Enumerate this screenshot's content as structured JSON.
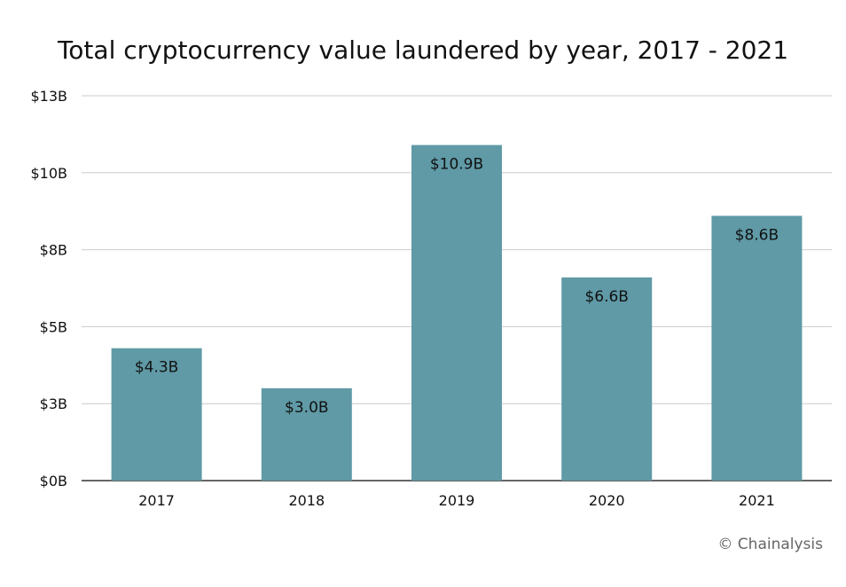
{
  "chart_data": {
    "type": "bar",
    "title": "Total cryptocurrency value laundered by year, 2017 - 2021",
    "xlabel": "",
    "ylabel": "",
    "categories": [
      "2017",
      "2018",
      "2019",
      "2020",
      "2021"
    ],
    "values": [
      4.3,
      3.0,
      10.9,
      6.6,
      8.6
    ],
    "data_labels": [
      "$4.3B",
      "$3.0B",
      "$10.9B",
      "$6.6B",
      "$8.6B"
    ],
    "ylim": [
      0,
      12.5
    ],
    "y_ticks": [
      0,
      2.5,
      5,
      7.5,
      10,
      12.5
    ],
    "y_tick_labels": [
      "$0B",
      "$3B",
      "$5B",
      "$8B",
      "$10B",
      "$13B"
    ],
    "grid": true,
    "bar_color": "#5f9aa6"
  },
  "source": "© Chainalysis"
}
